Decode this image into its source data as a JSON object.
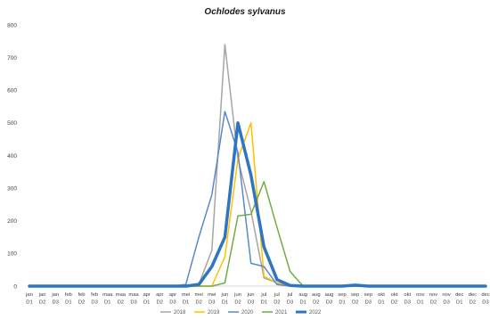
{
  "chart_data": {
    "type": "line",
    "title": "Ochlodes sylvanus",
    "xlabel": "",
    "ylabel": "",
    "ylim": [
      0,
      800
    ],
    "yticks": [
      0,
      100,
      200,
      300,
      400,
      500,
      600,
      700,
      800
    ],
    "grid": false,
    "legend_position": "bottom",
    "categories": [
      "jan D1",
      "jan D2",
      "jan D3",
      "feb D1",
      "feb D2",
      "feb D3",
      "maa D1",
      "maa D2",
      "maa D3",
      "apr D1",
      "apr D2",
      "apr D3",
      "mei D1",
      "mei D2",
      "mei D3",
      "jun D1",
      "jun D2",
      "jun D3",
      "jul D1",
      "jul D2",
      "jul D3",
      "aug D1",
      "aug D2",
      "aug D3",
      "sep D1",
      "sep D2",
      "sep D3",
      "okt D1",
      "okt D2",
      "okt D3",
      "nov D1",
      "nov D2",
      "nov D3",
      "dec D1",
      "dec D2",
      "dec D3"
    ],
    "series": [
      {
        "name": "2018",
        "color": "#a5a5a5",
        "width": 1.5,
        "values": [
          0,
          0,
          0,
          0,
          0,
          0,
          0,
          0,
          0,
          0,
          0,
          0,
          0,
          5,
          110,
          740,
          390,
          230,
          25,
          10,
          0,
          0,
          0,
          0,
          0,
          0,
          0,
          0,
          0,
          0,
          0,
          0,
          0,
          0,
          0,
          0
        ]
      },
      {
        "name": "2019",
        "color": "#ffc000",
        "width": 1.5,
        "values": [
          0,
          0,
          0,
          0,
          0,
          0,
          0,
          0,
          0,
          0,
          0,
          0,
          0,
          0,
          0,
          90,
          390,
          500,
          30,
          10,
          0,
          0,
          0,
          0,
          0,
          0,
          0,
          0,
          0,
          0,
          0,
          0,
          0,
          0,
          0,
          0
        ]
      },
      {
        "name": "2020",
        "color": "#5b87d0",
        "width": 1.5,
        "values": [
          0,
          0,
          0,
          0,
          0,
          0,
          0,
          0,
          0,
          0,
          0,
          0,
          5,
          150,
          280,
          535,
          410,
          70,
          60,
          5,
          0,
          0,
          0,
          0,
          0,
          0,
          0,
          0,
          0,
          0,
          0,
          0,
          0,
          0,
          0,
          0
        ]
      },
      {
        "name": "2021",
        "color": "#70ad47",
        "width": 1.5,
        "values": [
          0,
          0,
          0,
          0,
          0,
          0,
          0,
          0,
          0,
          0,
          0,
          0,
          0,
          0,
          0,
          10,
          215,
          220,
          320,
          180,
          45,
          0,
          0,
          0,
          0,
          0,
          0,
          0,
          0,
          0,
          0,
          0,
          0,
          0,
          0,
          0
        ]
      },
      {
        "name": "2022",
        "color": "#2f75c2",
        "width": 3.5,
        "values": [
          0,
          0,
          0,
          0,
          0,
          0,
          0,
          0,
          0,
          0,
          0,
          0,
          0,
          5,
          60,
          150,
          500,
          340,
          120,
          20,
          2,
          0,
          0,
          0,
          0,
          3,
          0,
          0,
          0,
          0,
          0,
          0,
          0,
          0,
          0,
          0
        ]
      }
    ]
  }
}
